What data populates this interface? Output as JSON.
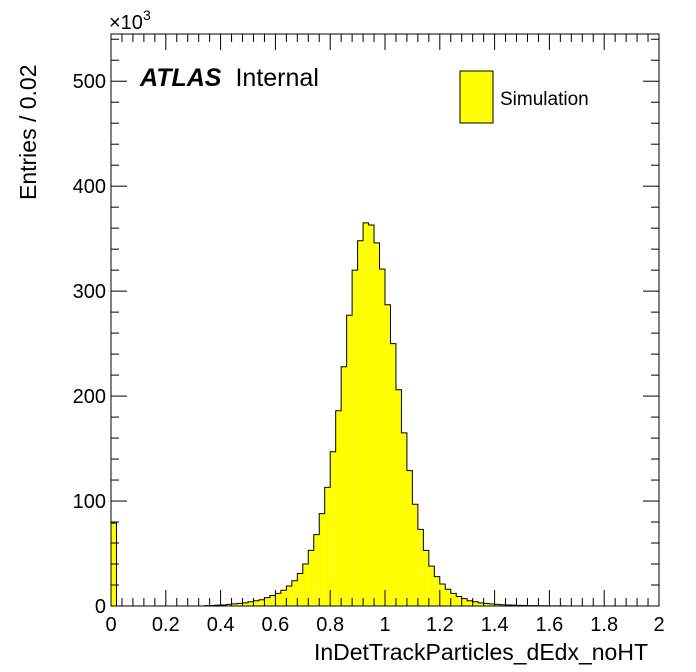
{
  "chart_data": {
    "type": "bar",
    "style": "histogram",
    "xlabel": "InDetTrackParticles_dEdx_noHT",
    "ylabel": "Entries / 0.02",
    "y_multiplier_label": "×10",
    "y_multiplier_exponent": "3",
    "xlim": [
      0,
      2
    ],
    "ylim": [
      0,
      545
    ],
    "bin_width": 0.02,
    "x_ticks": [
      "0",
      "0.2",
      "0.4",
      "0.6",
      "0.8",
      "1",
      "1.2",
      "1.4",
      "1.6",
      "1.8",
      "2"
    ],
    "x_tick_values": [
      0,
      0.2,
      0.4,
      0.6,
      0.8,
      1.0,
      1.2,
      1.4,
      1.6,
      1.8,
      2.0
    ],
    "y_ticks": [
      "0",
      "100",
      "200",
      "300",
      "400",
      "500"
    ],
    "y_tick_values": [
      0,
      100,
      200,
      300,
      400,
      500
    ],
    "fill_color": "#ffff00",
    "line_color": "#000000",
    "legend": {
      "placement": "top-right",
      "entries": [
        {
          "label": "Simulation",
          "color": "#ffff00"
        }
      ]
    },
    "annotation": {
      "bold": "ATLAS",
      "text": "Internal",
      "placement": "top-left"
    },
    "bins": {
      "x_low": [
        0.0,
        0.02,
        0.04,
        0.06,
        0.08,
        0.1,
        0.12,
        0.14,
        0.16,
        0.18,
        0.2,
        0.22,
        0.24,
        0.26,
        0.28,
        0.3,
        0.32,
        0.34,
        0.36,
        0.38,
        0.4,
        0.42,
        0.44,
        0.46,
        0.48,
        0.5,
        0.52,
        0.54,
        0.56,
        0.58,
        0.6,
        0.62,
        0.64,
        0.66,
        0.68,
        0.7,
        0.72,
        0.74,
        0.76,
        0.78,
        0.8,
        0.82,
        0.84,
        0.86,
        0.88,
        0.9,
        0.92,
        0.94,
        0.96,
        0.98,
        1.0,
        1.02,
        1.04,
        1.06,
        1.08,
        1.1,
        1.12,
        1.14,
        1.16,
        1.18,
        1.2,
        1.22,
        1.24,
        1.26,
        1.28,
        1.3,
        1.32,
        1.34,
        1.36,
        1.38,
        1.4,
        1.42,
        1.44,
        1.46,
        1.48,
        1.5,
        1.52,
        1.54,
        1.56,
        1.58,
        1.6,
        1.62,
        1.64,
        1.66,
        1.68,
        1.7,
        1.72,
        1.74,
        1.76,
        1.78,
        1.8,
        1.82,
        1.84,
        1.86,
        1.88,
        1.9,
        1.92,
        1.94,
        1.96,
        1.98
      ],
      "values": [
        79,
        0,
        0,
        0,
        0,
        0,
        0,
        0,
        0,
        0,
        0,
        0,
        0,
        0,
        0,
        0,
        0,
        0.3,
        0.5,
        0.8,
        1,
        1.5,
        2,
        2.5,
        3,
        4,
        5,
        6,
        8,
        10,
        12,
        15,
        19,
        24,
        31,
        40,
        53,
        68,
        88,
        113,
        147,
        186,
        228,
        277,
        320,
        348,
        365,
        363,
        346,
        321,
        287,
        250,
        206,
        165,
        129,
        97,
        73,
        53,
        38,
        28,
        21,
        16,
        12,
        9,
        7,
        5,
        4,
        3,
        2.5,
        2,
        1.5,
        1.2,
        1,
        0.8,
        0.6,
        0.5,
        0.4,
        0.3,
        0.2,
        0.2,
        0.1,
        0.1,
        0.1,
        0,
        0,
        0,
        0,
        0,
        0,
        0,
        0,
        0,
        0,
        0,
        0,
        0,
        0,
        0,
        0,
        0
      ]
    }
  }
}
